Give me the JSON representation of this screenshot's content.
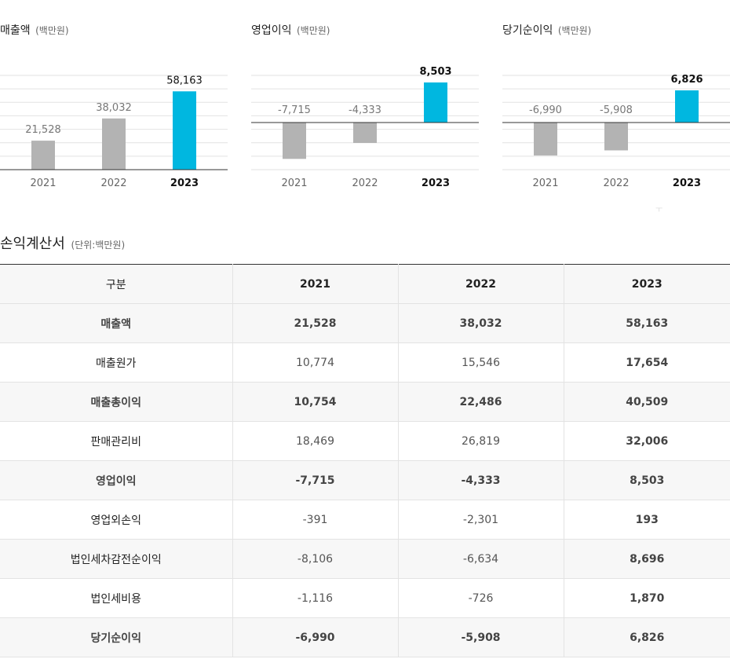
{
  "charts_section": {
    "note_glyph": "ㅜ"
  },
  "chart_data": [
    {
      "type": "bar",
      "title": "매출액",
      "unit": "(백만원)",
      "categories": [
        "2021",
        "2022",
        "2023"
      ],
      "values": [
        21528,
        38032,
        58163
      ],
      "value_labels": [
        "21,528",
        "38,032",
        "58,163"
      ],
      "ylim": [
        0,
        70000
      ],
      "grid": true,
      "colors": [
        "#b3b3b3",
        "#b3b3b3",
        "#00b7e0"
      ],
      "highlight_index": 2
    },
    {
      "type": "bar",
      "title": "영업이익",
      "unit": "(백만원)",
      "categories": [
        "2021",
        "2022",
        "2023"
      ],
      "values": [
        -7715,
        -4333,
        8503
      ],
      "value_labels": [
        "-7,715",
        "-4,333",
        "8,503"
      ],
      "ylim": [
        -10000,
        10000
      ],
      "grid": true,
      "colors": [
        "#b3b3b3",
        "#b3b3b3",
        "#00b7e0"
      ],
      "highlight_index": 2
    },
    {
      "type": "bar",
      "title": "당기순이익",
      "unit": "(백만원)",
      "categories": [
        "2021",
        "2022",
        "2023"
      ],
      "values": [
        -6990,
        -5908,
        6826
      ],
      "value_labels": [
        "-6,990",
        "-5,908",
        "6,826"
      ],
      "ylim": [
        -10000,
        10000
      ],
      "grid": true,
      "colors": [
        "#b3b3b3",
        "#b3b3b3",
        "#00b7e0"
      ],
      "highlight_index": 2
    }
  ],
  "statement": {
    "title": "손익계산서",
    "unit": "(단위:백만원)",
    "headers": [
      "구분",
      "2021",
      "2022",
      "2023"
    ],
    "rows": [
      {
        "label": "매출액",
        "values": [
          "21,528",
          "38,032",
          "58,163"
        ],
        "bold": true
      },
      {
        "label": "매출원가",
        "values": [
          "10,774",
          "15,546",
          "17,654"
        ],
        "bold": false
      },
      {
        "label": "매출총이익",
        "values": [
          "10,754",
          "22,486",
          "40,509"
        ],
        "bold": true
      },
      {
        "label": "판매관리비",
        "values": [
          "18,469",
          "26,819",
          "32,006"
        ],
        "bold": false
      },
      {
        "label": "영업이익",
        "values": [
          "-7,715",
          "-4,333",
          "8,503"
        ],
        "bold": true
      },
      {
        "label": "영업외손익",
        "values": [
          "-391",
          "-2,301",
          "193"
        ],
        "bold": false
      },
      {
        "label": "법인세차감전순이익",
        "values": [
          "-8,106",
          "-6,634",
          "8,696"
        ],
        "bold": false
      },
      {
        "label": "법인세비용",
        "values": [
          "-1,116",
          "-726",
          "1,870"
        ],
        "bold": false
      },
      {
        "label": "당기순이익",
        "values": [
          "-6,990",
          "-5,908",
          "6,826"
        ],
        "bold": true
      }
    ]
  }
}
